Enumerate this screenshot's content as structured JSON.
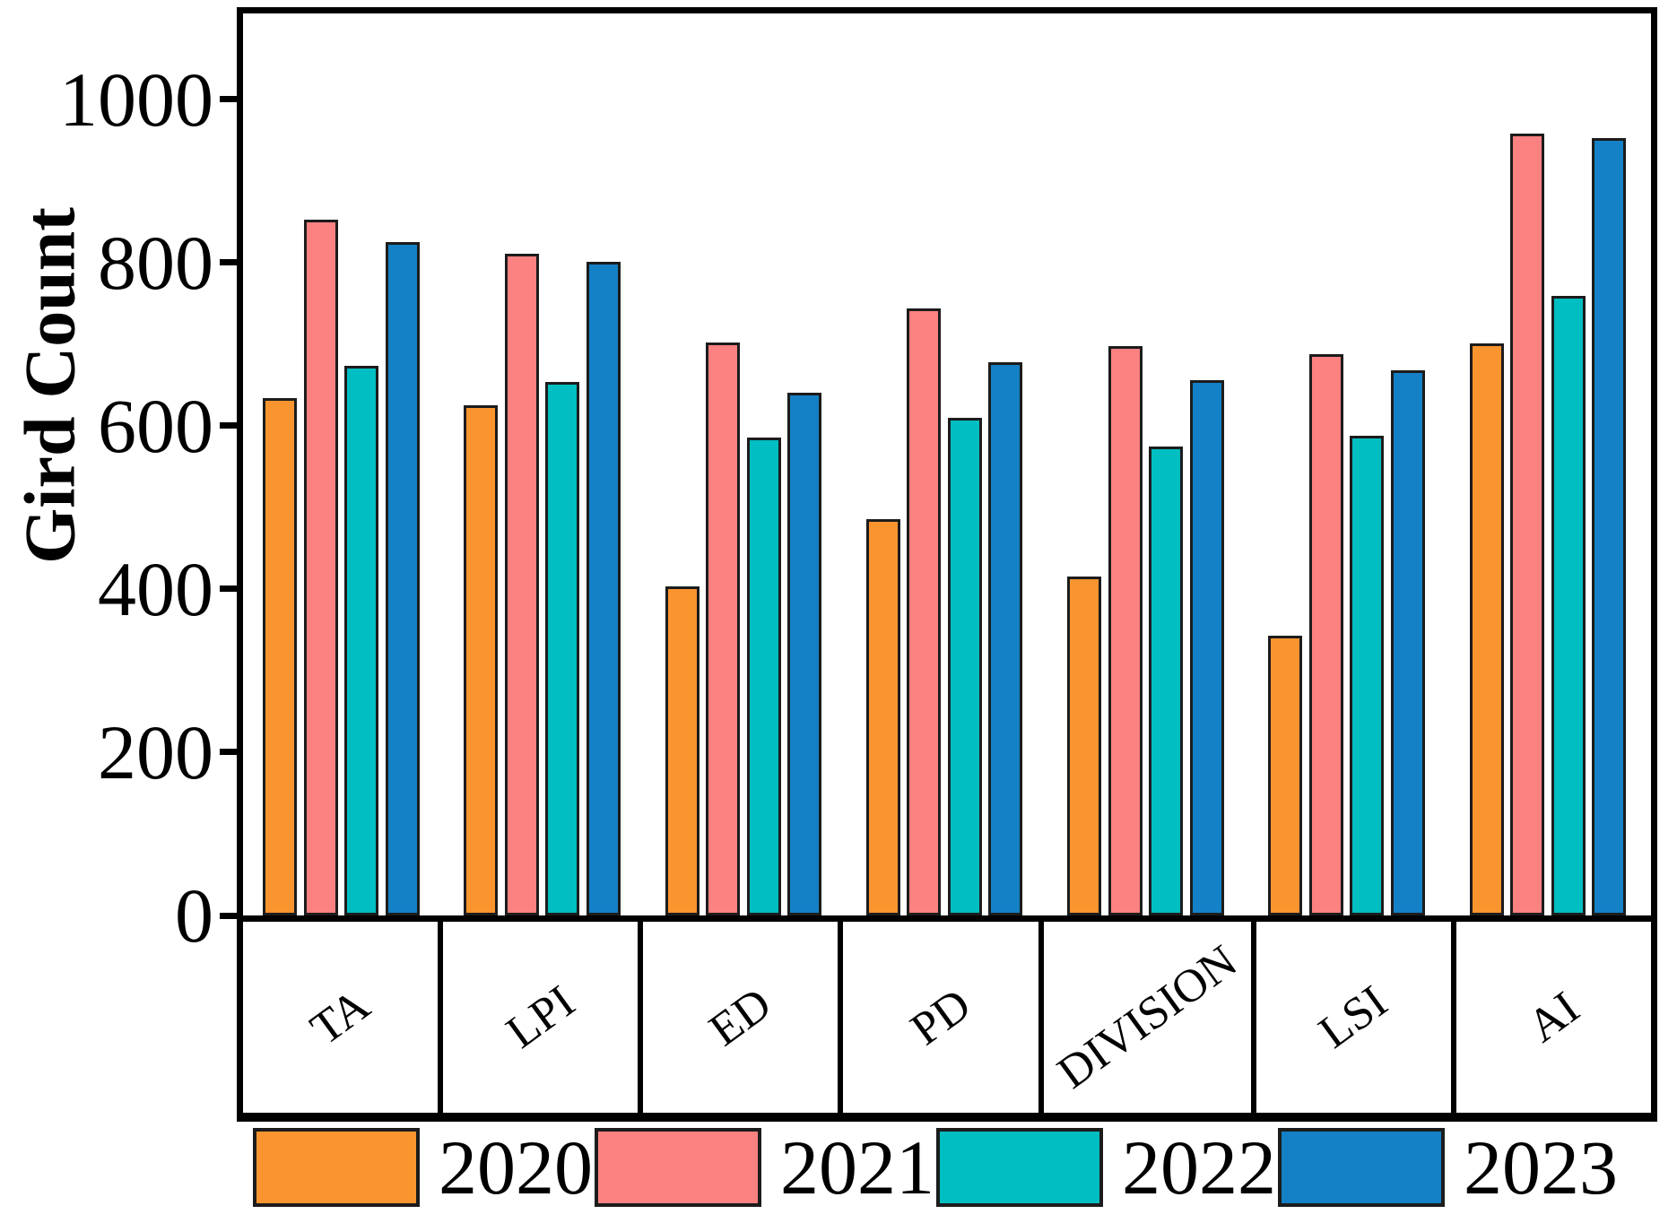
{
  "chart_data": {
    "type": "bar",
    "title": "",
    "xlabel": "",
    "ylabel": "Gird Count",
    "categories": [
      "TA",
      "LPI",
      "ED",
      "PD",
      "DIVISION",
      "LSI",
      "AI"
    ],
    "series": [
      {
        "name": "2020",
        "color": "#F9942F",
        "values": [
          634,
          625,
          403,
          486,
          415,
          343,
          701
        ]
      },
      {
        "name": "2021",
        "color": "#FC8181",
        "values": [
          852,
          811,
          702,
          744,
          697,
          688,
          958
        ]
      },
      {
        "name": "2022",
        "color": "#00BEC1",
        "values": [
          673,
          654,
          585,
          610,
          574,
          588,
          759
        ]
      },
      {
        "name": "2023",
        "color": "#1480C5",
        "values": [
          825,
          801,
          640,
          678,
          656,
          668,
          952
        ]
      }
    ],
    "y_ticks": [
      0,
      200,
      400,
      600,
      800,
      1000
    ],
    "ylim": [
      0,
      1105
    ],
    "grid": false,
    "legend_position": "bottom",
    "axis_color": "#000000",
    "bar_outline_color": "#1c1c1c"
  }
}
